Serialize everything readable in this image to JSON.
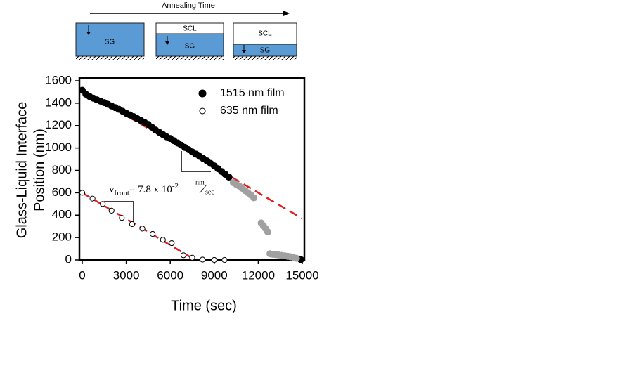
{
  "schematic": {
    "title": "Annealing Time",
    "panels": [
      {
        "top": null,
        "bottom": "SG"
      },
      {
        "top": "SCL",
        "bottom": "SG"
      },
      {
        "top": "SCL",
        "bottom": "SG"
      }
    ]
  },
  "chart_data": {
    "type": "scatter",
    "xlabel": "Time (sec)",
    "ylabel": [
      "Glass-Liquid Interface",
      "Position (nm)"
    ],
    "xlim": [
      0,
      15000
    ],
    "ylim": [
      0,
      1600
    ],
    "xticks": [
      0,
      3000,
      6000,
      9000,
      12000,
      15000
    ],
    "yticks": [
      0,
      200,
      400,
      600,
      800,
      1000,
      1200,
      1400,
      1600
    ],
    "legend": "upper right",
    "series": [
      {
        "name": "1515 nm film",
        "color": "#000000",
        "filled": true,
        "x": [
          0,
          250,
          500,
          750,
          1000,
          1250,
          1500,
          1750,
          2000,
          2250,
          2500,
          2750,
          3000,
          3250,
          3500,
          3750,
          4000,
          4250,
          4500,
          4750,
          5000,
          5250,
          5500,
          5750,
          6000,
          6250,
          6500,
          6750,
          7000,
          7250,
          7500,
          7750,
          8000,
          8250,
          8500,
          8750,
          9000,
          9250,
          9500,
          9750,
          10000,
          14900
        ],
        "values": [
          1515,
          1480,
          1460,
          1445,
          1430,
          1418,
          1405,
          1390,
          1375,
          1360,
          1345,
          1328,
          1310,
          1295,
          1280,
          1262,
          1245,
          1228,
          1210,
          1185,
          1160,
          1140,
          1120,
          1100,
          1085,
          1065,
          1045,
          1025,
          1005,
          985,
          965,
          945,
          925,
          905,
          885,
          862,
          840,
          815,
          790,
          765,
          740,
          3
        ]
      },
      {
        "color": "#a0a0a0",
        "filled": true,
        "x": [
          10300,
          10500,
          10700,
          10900,
          11100,
          11300,
          11500,
          11700,
          12200,
          12350,
          12500,
          12650,
          12800,
          13000,
          13200,
          13400,
          13600,
          13800,
          14000,
          14200,
          14400,
          14600
        ],
        "values": [
          690,
          675,
          660,
          640,
          620,
          600,
          580,
          555,
          330,
          305,
          280,
          250,
          55,
          50,
          47,
          44,
          40,
          37,
          33,
          28,
          22,
          15
        ]
      },
      {
        "name": "635 nm film",
        "color": "#000000",
        "filled": false,
        "x": [
          0,
          700,
          1400,
          2000,
          2700,
          3400,
          4100,
          4800,
          5500,
          6100,
          6900,
          7500,
          8200,
          9000,
          9700
        ],
        "values": [
          600,
          548,
          500,
          440,
          375,
          320,
          280,
          232,
          180,
          150,
          42,
          20,
          3,
          0,
          0
        ]
      }
    ],
    "fit_lines": [
      {
        "color": "#e02020",
        "x": [
          0,
          15000
        ],
        "values": [
          1520,
          370
        ]
      },
      {
        "color": "#e02020",
        "x": [
          0,
          7700
        ],
        "values": [
          600,
          0
        ]
      }
    ],
    "annotation": {
      "v": "v",
      "sub": "front",
      "text": "= 7.8 x 10",
      "sup": "-2",
      "unit_num": "nm",
      "unit_den": "sec"
    }
  }
}
